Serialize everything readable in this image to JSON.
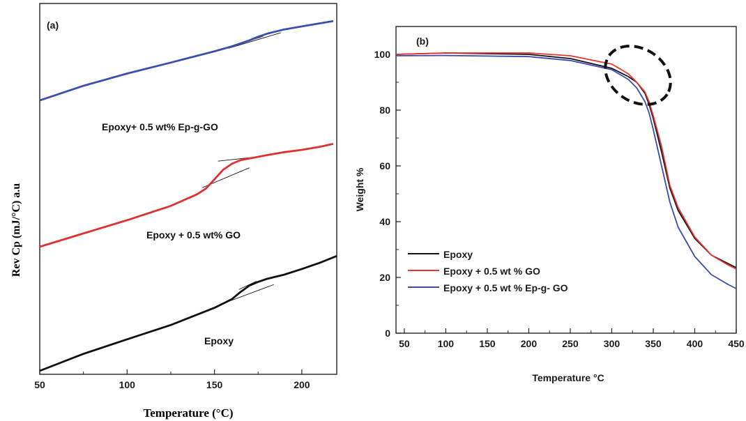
{
  "chart_data": [
    {
      "type": "line",
      "panel_label": "(a)",
      "xlabel": "Temperature (°C)",
      "ylabel": "Rev Cp (mJ/°C) a.u",
      "xlim": [
        50,
        220
      ],
      "xticks": [
        50,
        100,
        150,
        200
      ],
      "y_ticks_shown": false,
      "annotations": [
        "Epoxy+  0.5 wt% Ep-g-GO",
        "Epoxy + 0.5 wt% GO",
        "Epoxy"
      ],
      "colors": {
        "Epoxy+  0.5 wt% Ep-g-GO": "#3a4fb0",
        "Epoxy + 0.5 wt% GO": "#e03030",
        "Epoxy": "#111111"
      },
      "series": [
        {
          "name": "Epoxy+  0.5 wt% Ep-g-GO",
          "x": [
            50,
            75,
            100,
            125,
            150,
            160,
            165,
            170,
            175,
            180,
            190,
            200,
            210,
            218
          ],
          "y": [
            0.815,
            0.859,
            0.896,
            0.929,
            0.963,
            0.978,
            0.987,
            0.996,
            1.007,
            1.016,
            1.029,
            1.038,
            1.047,
            1.054
          ]
        },
        {
          "name": "Epoxy + 0.5 wt% GO",
          "x": [
            50,
            75,
            100,
            125,
            140,
            145,
            150,
            155,
            160,
            165,
            170,
            180,
            190,
            200,
            210,
            218
          ],
          "y": [
            0.374,
            0.414,
            0.454,
            0.497,
            0.532,
            0.549,
            0.577,
            0.606,
            0.624,
            0.635,
            0.64,
            0.65,
            0.659,
            0.666,
            0.675,
            0.684
          ]
        },
        {
          "name": "Epoxy",
          "x": [
            50,
            75,
            100,
            125,
            150,
            160,
            165,
            170,
            175,
            180,
            190,
            200,
            210,
            220
          ],
          "y": [
            0.0,
            0.051,
            0.095,
            0.138,
            0.19,
            0.216,
            0.238,
            0.257,
            0.268,
            0.277,
            0.29,
            0.307,
            0.325,
            0.346
          ]
        }
      ],
      "tangent_lines": [
        {
          "series": "Epoxy+  0.5 wt% Ep-g-GO",
          "x": [
            158,
            188
          ],
          "y": [
            0.972,
            1.019
          ]
        },
        {
          "series": "Epoxy+  0.5 wt% Ep-g-GO",
          "x": [
            168,
            178
          ],
          "y": [
            0.991,
            1.009
          ]
        },
        {
          "series": "Epoxy + 0.5 wt% GO",
          "x": [
            143,
            170
          ],
          "y": [
            0.552,
            0.612
          ]
        },
        {
          "series": "Epoxy + 0.5 wt% GO",
          "x": [
            152,
            178
          ],
          "y": [
            0.632,
            0.647
          ]
        },
        {
          "series": "Epoxy",
          "x": [
            155,
            184
          ],
          "y": [
            0.203,
            0.26
          ]
        },
        {
          "series": "Epoxy",
          "x": [
            164,
            174
          ],
          "y": [
            0.245,
            0.27
          ]
        }
      ]
    },
    {
      "type": "line",
      "panel_label": "(b)",
      "xlabel": "Temperature °C",
      "ylabel": "Weight %",
      "xlim": [
        40,
        450
      ],
      "ylim": [
        0,
        110
      ],
      "xticks": [
        50,
        100,
        150,
        200,
        250,
        300,
        350,
        400,
        450
      ],
      "yticks": [
        0,
        20,
        40,
        60,
        80,
        100
      ],
      "legend_position": "bottom-left",
      "highlight": "dashed ellipse around 290–360 °C, 80–103 %",
      "series": [
        {
          "name": "Epoxy",
          "color": "#111111",
          "x": [
            40,
            100,
            200,
            250,
            300,
            320,
            330,
            340,
            345,
            350,
            360,
            370,
            380,
            400,
            420,
            440,
            450
          ],
          "y": [
            100,
            100.5,
            100,
            98.5,
            95,
            92,
            90,
            86,
            82,
            77,
            65,
            52,
            44,
            34,
            28,
            25,
            23.5
          ]
        },
        {
          "name": "Epoxy + 0.5 wt % GO",
          "color": "#e83333",
          "x": [
            40,
            100,
            200,
            250,
            300,
            320,
            330,
            340,
            345,
            350,
            360,
            370,
            380,
            400,
            420,
            440,
            450
          ],
          "y": [
            100,
            100.5,
            100.5,
            99.5,
            96.5,
            93,
            90,
            86.5,
            83,
            78,
            67,
            53,
            45,
            34.5,
            28,
            24.5,
            23
          ]
        },
        {
          "name": "Epoxy + 0.5 wt % Ep-g- GO",
          "color": "#3b49b5",
          "x": [
            40,
            100,
            200,
            250,
            300,
            320,
            330,
            340,
            345,
            350,
            360,
            370,
            380,
            400,
            420,
            440,
            450
          ],
          "y": [
            99.5,
            99.6,
            99.2,
            97.8,
            94.5,
            91,
            88,
            83,
            79,
            73,
            60,
            47,
            38,
            27.5,
            21,
            17.5,
            16
          ]
        }
      ]
    }
  ]
}
